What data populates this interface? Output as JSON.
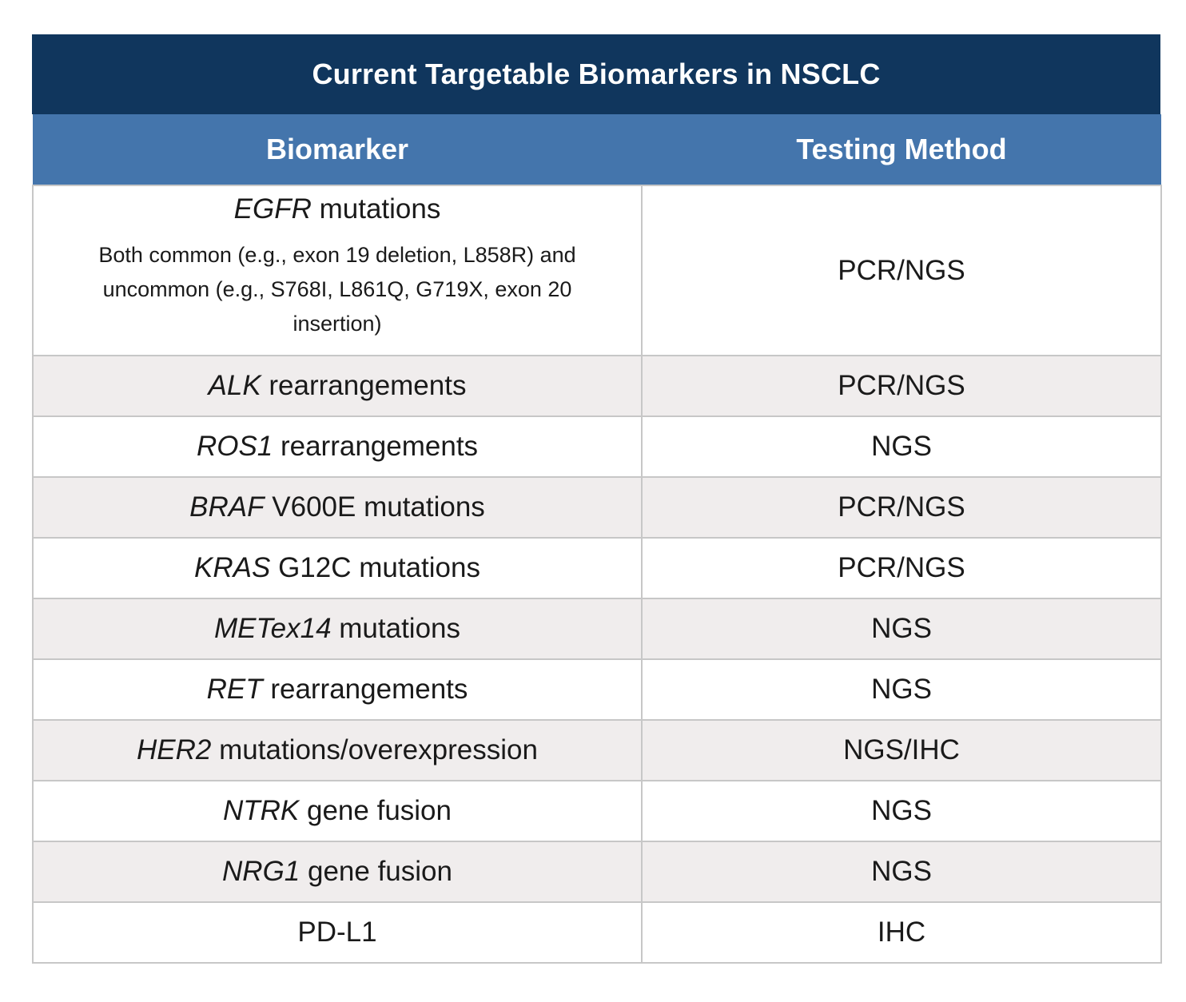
{
  "table": {
    "title": "Current Targetable Biomarkers in NSCLC",
    "headers": [
      "Biomarker",
      "Testing Method"
    ],
    "rows": [
      {
        "gene": "EGFR",
        "rest": " mutations",
        "note": "Both common (e.g., exon 19 deletion, L858R) and uncommon (e.g., S768I, L861Q, G719X, exon 20 insertion)",
        "method": "PCR/NGS"
      },
      {
        "gene": "ALK",
        "rest": " rearrangements",
        "method": "PCR/NGS"
      },
      {
        "gene": "ROS1",
        "rest": " rearrangements",
        "method": "NGS"
      },
      {
        "gene": "BRAF",
        "rest": " V600E mutations",
        "method": "PCR/NGS"
      },
      {
        "gene": "KRAS",
        "rest": " G12C mutations",
        "method": "PCR/NGS"
      },
      {
        "gene": "METex14",
        "rest": " mutations",
        "method": "NGS"
      },
      {
        "gene": "RET",
        "rest": " rearrangements",
        "method": "NGS"
      },
      {
        "gene": "HER2",
        "rest": " mutations/overexpression",
        "method": "NGS/IHC"
      },
      {
        "gene": "NTRK",
        "rest": " gene fusion",
        "method": "NGS"
      },
      {
        "gene": "NRG1",
        "rest": " gene fusion",
        "method": "NGS"
      },
      {
        "gene": "",
        "rest": "PD-L1",
        "method": "IHC"
      }
    ]
  },
  "colors": {
    "title_bg": "#10365d",
    "header_bg": "#4475ac",
    "alt_row_bg": "#f0eded",
    "border": "#c7c7c7"
  }
}
